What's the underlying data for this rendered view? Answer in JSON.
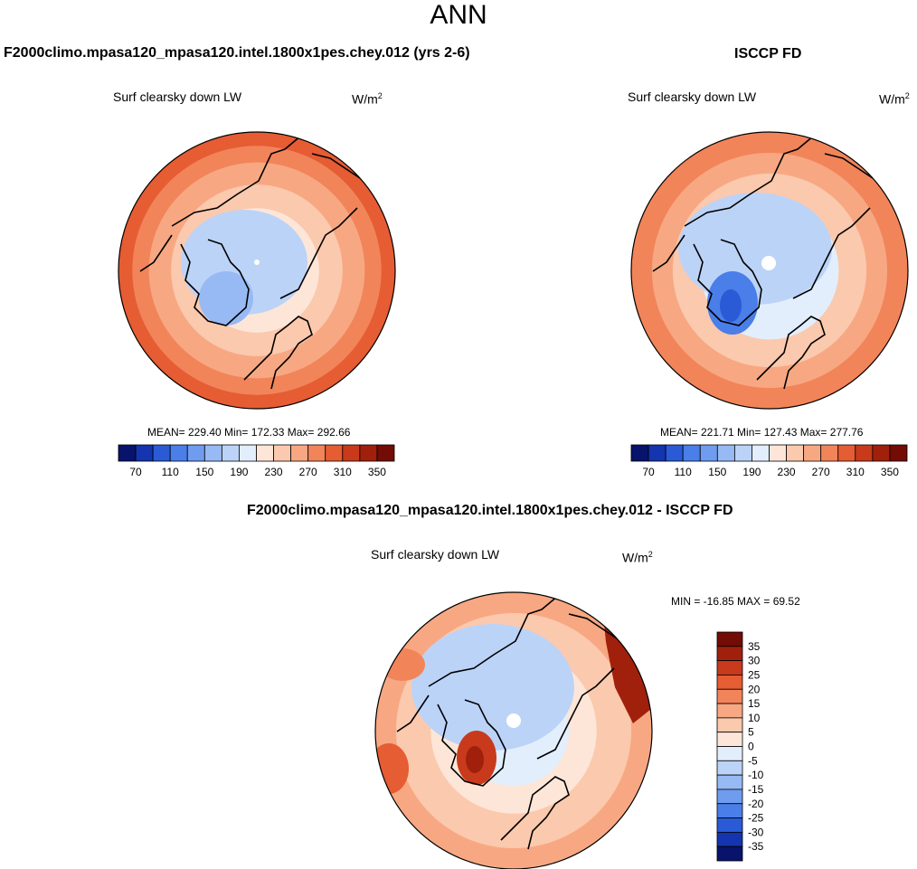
{
  "page": {
    "title": "ANN",
    "case_title": "F2000climo.mpasa120_mpasa120.intel.1800x1pes.chey.012 (yrs 2-6)",
    "obs_title": "ISCCP FD",
    "diff_title": "F2000climo.mpasa120_mpasa120.intel.1800x1pes.chey.012 - ISCCP FD"
  },
  "chart_data": [
    {
      "type": "heatmap",
      "projection": "north-polar-stereographic",
      "field": "Surf clearsky down LW",
      "units_base": "W/m",
      "units_exp": "2",
      "stats": {
        "mean": "229.40",
        "min": "172.33",
        "max": "292.66"
      },
      "stats_text": "MEAN= 229.40  Min= 172.33  Max= 292.66",
      "colorbar": {
        "levels": [
          70,
          90,
          110,
          130,
          150,
          170,
          190,
          210,
          230,
          250,
          270,
          290,
          310,
          330,
          350
        ],
        "tick_labels": [
          "70",
          "110",
          "150",
          "190",
          "230",
          "270",
          "310",
          "350"
        ],
        "colors": [
          "#08136b",
          "#1434b0",
          "#2a5ad6",
          "#4a7ee8",
          "#6f9cef",
          "#97baf4",
          "#bcd3f8",
          "#e2eefc",
          "#fde6d8",
          "#fbc9ad",
          "#f7a882",
          "#f2845a",
          "#e65c33",
          "#c83a1b",
          "#a0200c",
          "#720c04"
        ]
      },
      "rings": [
        {
          "r": 1.0,
          "value": 295
        },
        {
          "r": 0.9,
          "value": 280
        },
        {
          "r": 0.78,
          "value": 265
        },
        {
          "r": 0.62,
          "value": 245
        },
        {
          "r": 0.45,
          "value": 215
        },
        {
          "r": 0.3,
          "value": 195
        }
      ]
    },
    {
      "type": "heatmap",
      "projection": "north-polar-stereographic",
      "field": "Surf clearsky down LW",
      "units_base": "W/m",
      "units_exp": "2",
      "stats": {
        "mean": "221.71",
        "min": "127.43",
        "max": "277.76"
      },
      "stats_text": "MEAN= 221.71  Min= 127.43  Max= 277.76",
      "colorbar": {
        "levels": [
          70,
          90,
          110,
          130,
          150,
          170,
          190,
          210,
          230,
          250,
          270,
          290,
          310,
          330,
          350
        ],
        "tick_labels": [
          "70",
          "110",
          "150",
          "190",
          "230",
          "270",
          "310",
          "350"
        ],
        "colors": [
          "#08136b",
          "#1434b0",
          "#2a5ad6",
          "#4a7ee8",
          "#6f9cef",
          "#97baf4",
          "#bcd3f8",
          "#e2eefc",
          "#fde6d8",
          "#fbc9ad",
          "#f7a882",
          "#f2845a",
          "#e65c33",
          "#c83a1b",
          "#a0200c",
          "#720c04"
        ]
      },
      "rings": [
        {
          "r": 1.0,
          "value": 270
        },
        {
          "r": 0.85,
          "value": 255
        },
        {
          "r": 0.7,
          "value": 235
        },
        {
          "r": 0.5,
          "value": 205
        },
        {
          "r": 0.32,
          "value": 195
        }
      ]
    },
    {
      "type": "heatmap",
      "projection": "north-polar-stereographic",
      "field": "Surf clearsky down LW",
      "units_base": "W/m",
      "units_exp": "2",
      "stats": {
        "min": "-16.85",
        "max": "69.52"
      },
      "stats_text": "MIN = -16.85 MAX =  69.52",
      "colorbar": {
        "orientation": "vertical",
        "levels": [
          -35,
          -30,
          -25,
          -20,
          -15,
          -10,
          -5,
          0,
          5,
          10,
          15,
          20,
          25,
          30,
          35
        ],
        "tick_labels": [
          "35",
          "30",
          "25",
          "20",
          "15",
          "10",
          "5",
          "0",
          "-5",
          "-10",
          "-15",
          "-20",
          "-25",
          "-30",
          "-35"
        ],
        "colors": [
          "#08136b",
          "#1434b0",
          "#2a5ad6",
          "#4a7ee8",
          "#6f9cef",
          "#97baf4",
          "#bcd3f8",
          "#e2eefc",
          "#fde6d8",
          "#fbc9ad",
          "#f7a882",
          "#f2845a",
          "#e65c33",
          "#c83a1b",
          "#a0200c",
          "#720c04"
        ]
      },
      "rings": [
        {
          "r": 1.0,
          "value": 12
        },
        {
          "r": 0.85,
          "value": 6
        },
        {
          "r": 0.6,
          "value": 3
        },
        {
          "r": 0.4,
          "value": -3
        }
      ]
    }
  ]
}
